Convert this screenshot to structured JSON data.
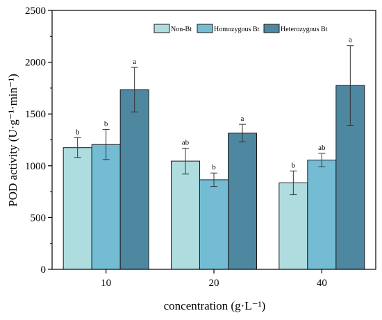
{
  "chart_data": {
    "type": "bar",
    "title": "",
    "xlabel": "concentration (g·L⁻¹)",
    "ylabel": "POD activity (U·g⁻¹·min⁻¹)",
    "ylim": [
      0,
      2500
    ],
    "yticks": [
      0,
      500,
      1000,
      1500,
      2000,
      2500
    ],
    "categories": [
      "10",
      "20",
      "40"
    ],
    "series": [
      {
        "name": "Non-Bt",
        "color": "#aedcdf",
        "values": [
          1175,
          1045,
          835
        ],
        "errors": [
          95,
          125,
          115
        ],
        "labels": [
          "b",
          "ab",
          "b"
        ]
      },
      {
        "name": "Homozygous Bt",
        "color": "#74bcd4",
        "values": [
          1205,
          865,
          1055
        ],
        "errors": [
          145,
          65,
          65
        ],
        "labels": [
          "b",
          "b",
          "ab"
        ]
      },
      {
        "name": "Heterozygous Bt",
        "color": "#4e87a0",
        "values": [
          1735,
          1315,
          1775
        ],
        "errors": [
          215,
          85,
          385
        ],
        "labels": [
          "a",
          "a",
          "a"
        ]
      }
    ],
    "grid": false,
    "legend_position": "top-right"
  }
}
